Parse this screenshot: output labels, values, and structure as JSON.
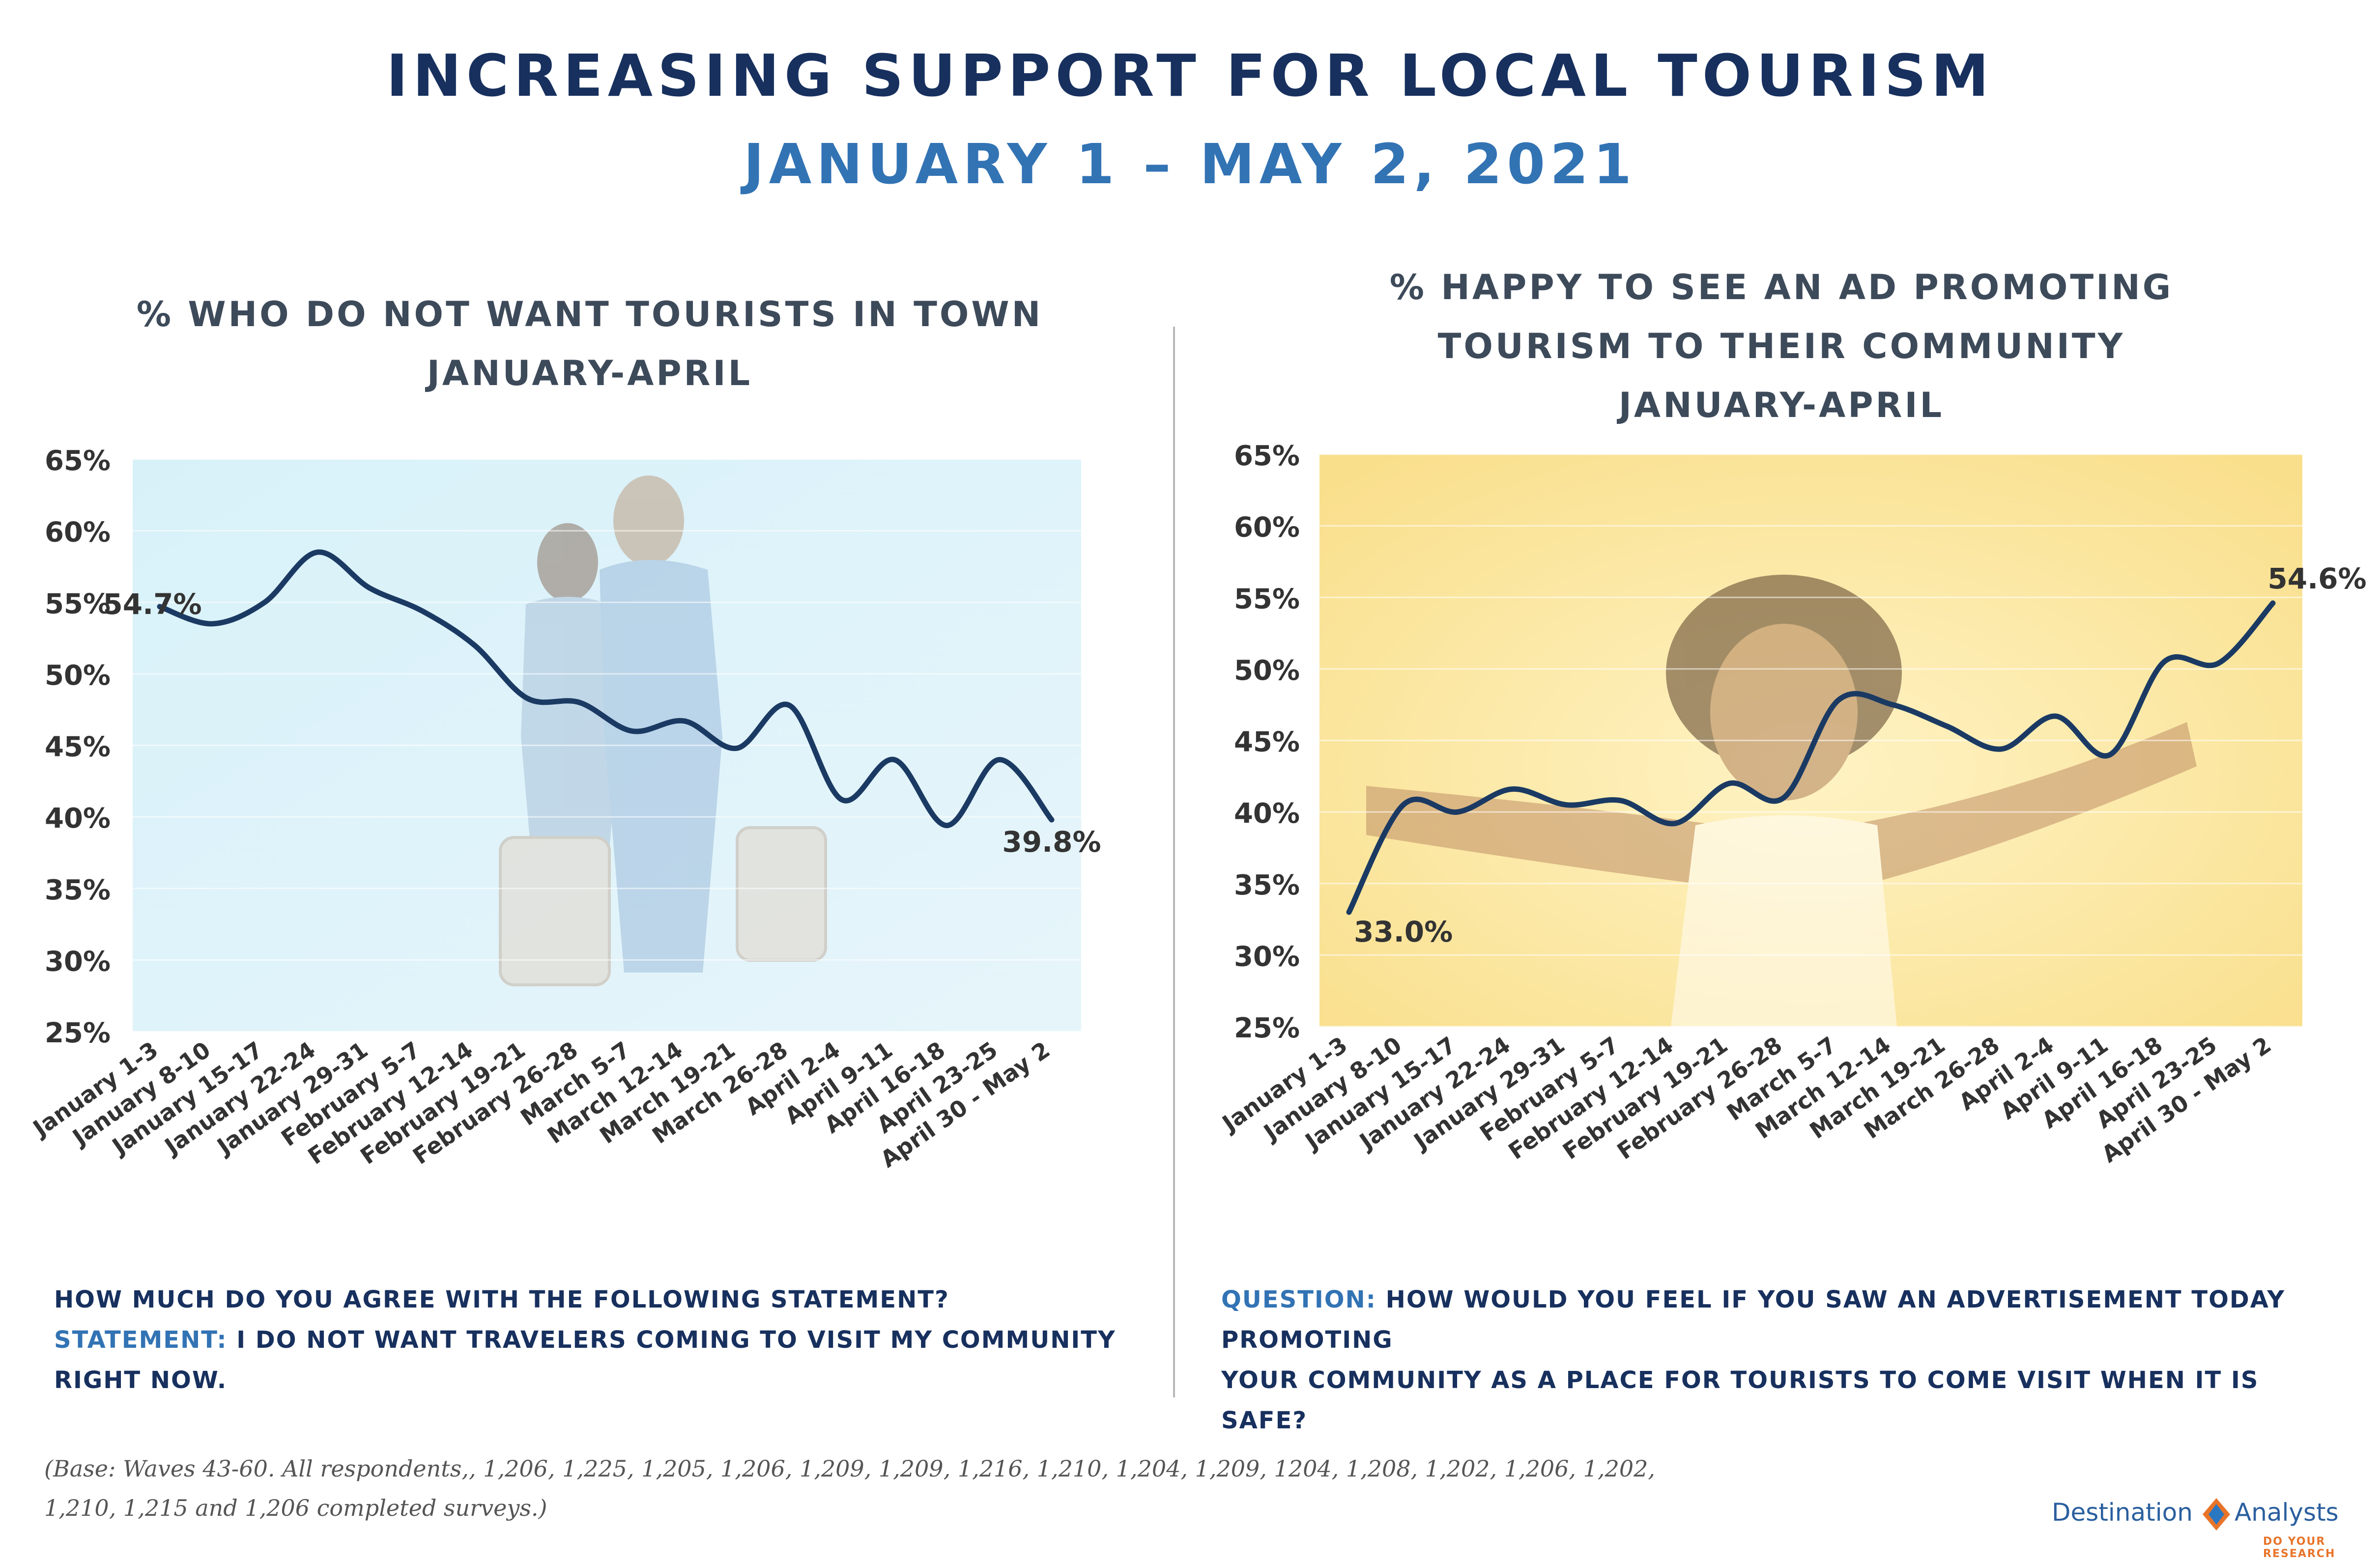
{
  "title": "INCREASING SUPPORT FOR LOCAL TOURISM",
  "subtitle": "JANUARY 1 – MAY 2, 2021",
  "left": {
    "title_line1": "% WHO DO NOT WANT TOURISTS IN TOWN",
    "title_line2": "JANUARY-APRIL",
    "question_line1": "HOW MUCH DO YOU AGREE WITH THE FOLLOWING STATEMENT?",
    "statement_label": "STATEMENT:",
    "statement_text": "I DO NOT WANT TRAVELERS COMING TO VISIT MY COMMUNITY RIGHT NOW."
  },
  "right": {
    "title_line1": "% HAPPY TO SEE AN AD PROMOTING",
    "title_line2": "TOURISM TO THEIR COMMUNITY",
    "title_line3": "JANUARY-APRIL",
    "question_label": "QUESTION:",
    "question_line1": "HOW WOULD YOU FEEL IF YOU SAW AN ADVERTISEMENT TODAY PROMOTING",
    "question_line2": "YOUR COMMUNITY AS A PLACE FOR TOURISTS TO COME VISIT WHEN IT IS SAFE?"
  },
  "footnote_line1": "(Base: Waves 43-60.  All respondents,, 1,206, 1,225, 1,205, 1,206, 1,209, 1,209, 1,216, 1,210, 1,204, 1,209, 1204, 1,208, 1,202, 1,206, 1,202,",
  "footnote_line2": "1,210, 1,215 and 1,206 completed surveys.)",
  "logo": {
    "word1": "Destination",
    "word2": "Analysts",
    "tagline": "DO YOUR RESEARCH"
  },
  "colors": {
    "navy": "#17305e",
    "blue": "#3273b4",
    "line": "#1b3a63",
    "left_bg": "#dff2f8",
    "right_bg": "#fbe6a2"
  },
  "chart_data": [
    {
      "type": "line",
      "categories": [
        "January 1-3",
        "January 8-10",
        "January 15-17",
        "January 22-24",
        "January 29-31",
        "February 5-7",
        "February 12-14",
        "February 19-21",
        "February 26-28",
        "March 5-7",
        "March 12-14",
        "March 19-21",
        "March 26-28",
        "April 2-4",
        "April 9-11",
        "April 16-18",
        "April 23-25",
        "April 30 - May 2"
      ],
      "values": [
        54.7,
        53.5,
        55.0,
        58.5,
        56.0,
        54.4,
        52.0,
        48.3,
        48.0,
        46.0,
        46.7,
        44.8,
        47.8,
        41.2,
        44.0,
        39.4,
        44.0,
        39.8
      ],
      "data_labels": {
        "first": "54.7%",
        "last": "39.8%"
      },
      "y_ticks": [
        "25%",
        "30%",
        "35%",
        "40%",
        "45%",
        "50%",
        "55%",
        "60%",
        "65%"
      ],
      "ylim": [
        25,
        65
      ],
      "grid": true
    },
    {
      "type": "line",
      "categories": [
        "January 1-3",
        "January 8-10",
        "January 15-17",
        "January 22-24",
        "January 29-31",
        "February 5-7",
        "February 12-14",
        "February 19-21",
        "February 26-28",
        "March 5-7",
        "March 12-14",
        "March 19-21",
        "March 26-28",
        "April 2-4",
        "April 9-11",
        "April 16-18",
        "April 23-25",
        "April 30 - May 2"
      ],
      "values": [
        33.0,
        40.5,
        40.0,
        41.6,
        40.5,
        40.8,
        39.2,
        42.0,
        41.0,
        47.8,
        47.5,
        46.0,
        44.4,
        46.7,
        44.0,
        50.5,
        50.4,
        54.6
      ],
      "data_labels": {
        "first": "33.0%",
        "last": "54.6%"
      },
      "y_ticks": [
        "25%",
        "30%",
        "35%",
        "40%",
        "45%",
        "50%",
        "55%",
        "60%",
        "65%"
      ],
      "ylim": [
        25,
        65
      ],
      "grid": true
    }
  ]
}
